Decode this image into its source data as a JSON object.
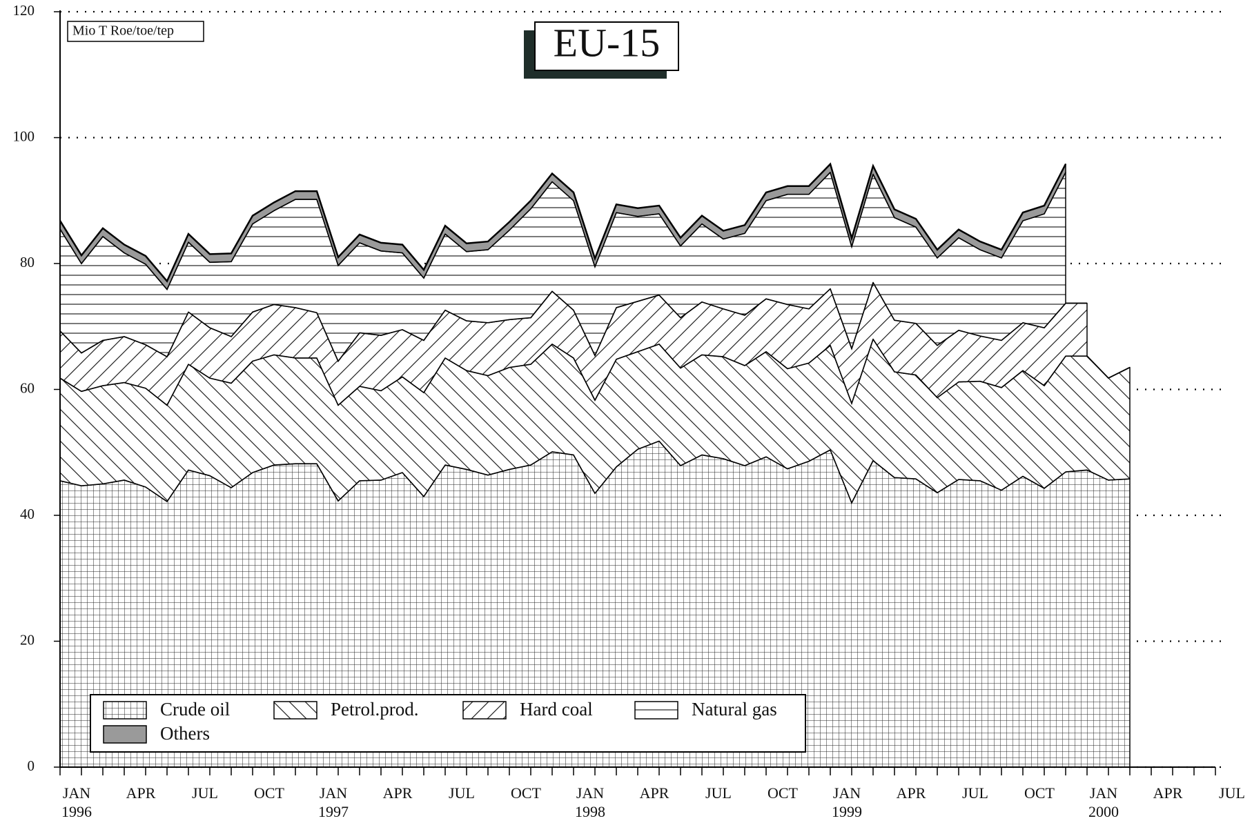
{
  "chart_data": {
    "type": "stacked_area",
    "title": "EU-15",
    "unit_label": "Mio T Roe/toe/tep",
    "categories": [
      "JAN",
      null,
      null,
      "APR",
      null,
      null,
      "JUL",
      null,
      null,
      "OCT",
      null,
      null,
      "JAN",
      null,
      null,
      "APR",
      null,
      null,
      "JUL",
      null,
      null,
      "OCT",
      null,
      null,
      "JAN",
      null,
      null,
      "APR",
      null,
      null,
      "JUL",
      null,
      null,
      "OCT",
      null,
      null,
      "JAN",
      null,
      null,
      "APR",
      null,
      null,
      "JUL",
      null,
      null,
      "OCT",
      null,
      null,
      "JAN",
      null,
      null,
      "APR",
      null,
      null,
      "JUL"
    ],
    "category_years": [
      "1996",
      null,
      null,
      null,
      null,
      null,
      null,
      null,
      null,
      null,
      null,
      null,
      "1997",
      null,
      null,
      null,
      null,
      null,
      null,
      null,
      null,
      null,
      null,
      null,
      "1998",
      null,
      null,
      null,
      null,
      null,
      null,
      null,
      null,
      null,
      null,
      null,
      "1999",
      null,
      null,
      null,
      null,
      null,
      null,
      null,
      null,
      null,
      null,
      null,
      "2000",
      null,
      null,
      null,
      null,
      null,
      null
    ],
    "series": [
      {
        "name": "Crude oil",
        "pattern": "grid",
        "color": "#000000",
        "values": [
          45.5,
          44.7,
          45.0,
          45.6,
          44.5,
          42.2,
          47.2,
          46.3,
          44.4,
          46.8,
          48.0,
          48.2,
          48.2,
          42.3,
          45.5,
          45.6,
          46.8,
          43.0,
          48.0,
          47.3,
          46.4,
          47.3,
          48.0,
          50.1,
          49.6,
          43.5,
          47.7,
          50.5,
          51.8,
          47.9,
          49.6,
          49.0,
          47.9,
          49.3,
          47.4,
          48.6,
          50.4,
          42.0,
          48.7,
          46.0,
          45.8,
          43.6,
          45.7,
          45.5,
          44.0,
          46.2,
          44.3,
          46.9,
          47.2,
          45.6,
          45.8,
          null,
          null,
          null,
          null
        ]
      },
      {
        "name": "Petrol.prod.",
        "pattern": "backslash",
        "color": "#000000",
        "values": [
          16.3,
          15.0,
          15.6,
          15.5,
          15.7,
          15.3,
          16.8,
          15.5,
          16.6,
          17.7,
          17.5,
          16.8,
          16.8,
          15.2,
          15.0,
          14.2,
          15.2,
          16.5,
          17.0,
          15.7,
          15.8,
          16.2,
          16.0,
          17.1,
          15.4,
          14.8,
          17.1,
          15.5,
          15.4,
          15.5,
          15.9,
          16.2,
          15.9,
          16.7,
          15.9,
          15.6,
          16.6,
          15.8,
          19.3,
          16.8,
          16.5,
          15.1,
          15.5,
          15.8,
          16.3,
          16.8,
          16.3,
          18.4,
          18.1,
          16.2,
          17.7,
          null,
          null,
          null,
          null
        ]
      },
      {
        "name": "Hard coal",
        "pattern": "slash",
        "color": "#000000",
        "values": [
          7.5,
          6.1,
          7.2,
          7.3,
          6.9,
          7.7,
          8.3,
          8.0,
          7.4,
          7.8,
          8.0,
          8.0,
          7.2,
          7.0,
          8.5,
          8.8,
          7.5,
          8.3,
          7.6,
          7.9,
          8.4,
          7.6,
          7.4,
          8.4,
          7.6,
          7.1,
          8.2,
          8.0,
          7.8,
          8.0,
          8.4,
          7.6,
          8.0,
          8.4,
          10.2,
          8.6,
          9.0,
          8.7,
          9.0,
          8.2,
          8.2,
          8.3,
          8.2,
          7.2,
          7.5,
          7.6,
          9.2,
          8.4,
          8.4,
          null,
          null,
          null,
          null,
          null,
          null
        ]
      },
      {
        "name": "Natural gas",
        "pattern": "horizontal",
        "color": "#000000",
        "values": [
          16.2,
          14.2,
          16.5,
          13.3,
          12.8,
          10.7,
          11.1,
          10.4,
          11.9,
          14.0,
          14.9,
          17.2,
          18.0,
          15.2,
          14.3,
          13.4,
          12.2,
          9.9,
          12.1,
          11.0,
          11.6,
          14.2,
          17.3,
          17.4,
          17.4,
          14.1,
          15.1,
          13.5,
          12.9,
          11.4,
          12.4,
          11.1,
          13.0,
          15.6,
          17.5,
          18.2,
          18.5,
          16.2,
          17.2,
          16.3,
          15.3,
          13.9,
          14.7,
          13.7,
          13.1,
          16.2,
          18.1,
          20.8,
          null,
          null,
          null,
          null,
          null,
          null,
          null
        ]
      },
      {
        "name": "Others",
        "pattern": "solid",
        "color": "#9a9a9a",
        "values": [
          1.3,
          1.3,
          1.3,
          1.3,
          1.3,
          1.3,
          1.3,
          1.3,
          1.3,
          1.3,
          1.3,
          1.3,
          1.3,
          1.3,
          1.3,
          1.3,
          1.3,
          1.3,
          1.3,
          1.3,
          1.3,
          1.3,
          1.3,
          1.3,
          1.3,
          1.3,
          1.3,
          1.3,
          1.3,
          1.3,
          1.3,
          1.3,
          1.3,
          1.3,
          1.3,
          1.3,
          1.3,
          1.3,
          1.3,
          1.3,
          1.3,
          1.3,
          1.3,
          1.3,
          1.3,
          1.3,
          1.3,
          1.3,
          null,
          null,
          null,
          null,
          null,
          null,
          null
        ]
      }
    ],
    "ylim": [
      0,
      120
    ],
    "yticks": [
      0,
      20,
      40,
      60,
      80,
      100,
      120
    ],
    "grid": true,
    "legend": "lower left"
  }
}
